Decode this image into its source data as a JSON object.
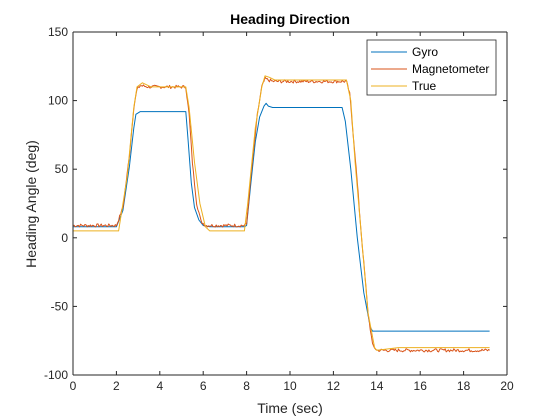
{
  "chart_data": {
    "type": "line",
    "title": "Heading Direction",
    "xlabel": "Time (sec)",
    "ylabel": "Heading Angle (deg)",
    "xlim": [
      0,
      20
    ],
    "ylim": [
      -100,
      150
    ],
    "xticks": [
      0,
      2,
      4,
      6,
      8,
      10,
      12,
      14,
      16,
      18,
      20
    ],
    "yticks": [
      -100,
      -50,
      0,
      50,
      100,
      150
    ],
    "grid": false,
    "legend_position": "top-right",
    "series": [
      {
        "name": "Gyro",
        "color": "#0072BD",
        "noise": 0,
        "x": [
          0,
          2.0,
          2.3,
          2.6,
          2.8,
          2.9,
          3.1,
          4.0,
          5.2,
          5.3,
          5.45,
          5.6,
          5.8,
          6.0,
          6.3,
          7.9,
          8.0,
          8.2,
          8.4,
          8.6,
          8.8,
          8.9,
          9.0,
          9.2,
          10.0,
          12.4,
          12.55,
          12.8,
          13.1,
          13.4,
          13.7,
          13.8,
          15.0,
          19.2
        ],
        "y": [
          8,
          8,
          20,
          52,
          80,
          90,
          92,
          92,
          92,
          72,
          40,
          22,
          13,
          9,
          8,
          8,
          9,
          40,
          70,
          88,
          96,
          98,
          96,
          95,
          95,
          95,
          85,
          50,
          0,
          -40,
          -65,
          -68,
          -68,
          -68
        ]
      },
      {
        "name": "Magnetometer",
        "color": "#D95319",
        "noise": 1.2,
        "x": [
          0,
          2.0,
          2.3,
          2.6,
          2.8,
          2.95,
          3.1,
          3.5,
          5.2,
          5.35,
          5.5,
          5.7,
          5.9,
          6.1,
          6.3,
          7.9,
          8.0,
          8.2,
          8.5,
          8.7,
          8.85,
          9.0,
          9.2,
          10.0,
          12.6,
          12.75,
          13.0,
          13.3,
          13.6,
          13.8,
          14.0,
          15.0,
          19.2
        ],
        "y": [
          9,
          9,
          22,
          60,
          95,
          108,
          111,
          110,
          110,
          90,
          55,
          25,
          12,
          9,
          9,
          9,
          10,
          45,
          90,
          110,
          116,
          115,
          114,
          114,
          114,
          105,
          60,
          0,
          -55,
          -78,
          -82,
          -82,
          -82
        ]
      },
      {
        "name": "True",
        "color": "#EDB120",
        "noise": 0,
        "x": [
          0,
          2.1,
          2.5,
          2.8,
          2.95,
          3.2,
          3.6,
          5.2,
          5.35,
          5.6,
          5.85,
          6.1,
          6.3,
          7.9,
          8.05,
          8.4,
          8.7,
          8.85,
          9.05,
          9.3,
          10.0,
          12.6,
          12.8,
          13.0,
          13.3,
          13.6,
          13.9,
          14.0,
          15.0,
          19.2
        ],
        "y": [
          5,
          5,
          45,
          95,
          110,
          113,
          110,
          110,
          95,
          55,
          25,
          8,
          5,
          5,
          25,
          80,
          110,
          118,
          117,
          115,
          115,
          115,
          100,
          55,
          0,
          -55,
          -80,
          -82,
          -80,
          -80
        ]
      }
    ]
  }
}
